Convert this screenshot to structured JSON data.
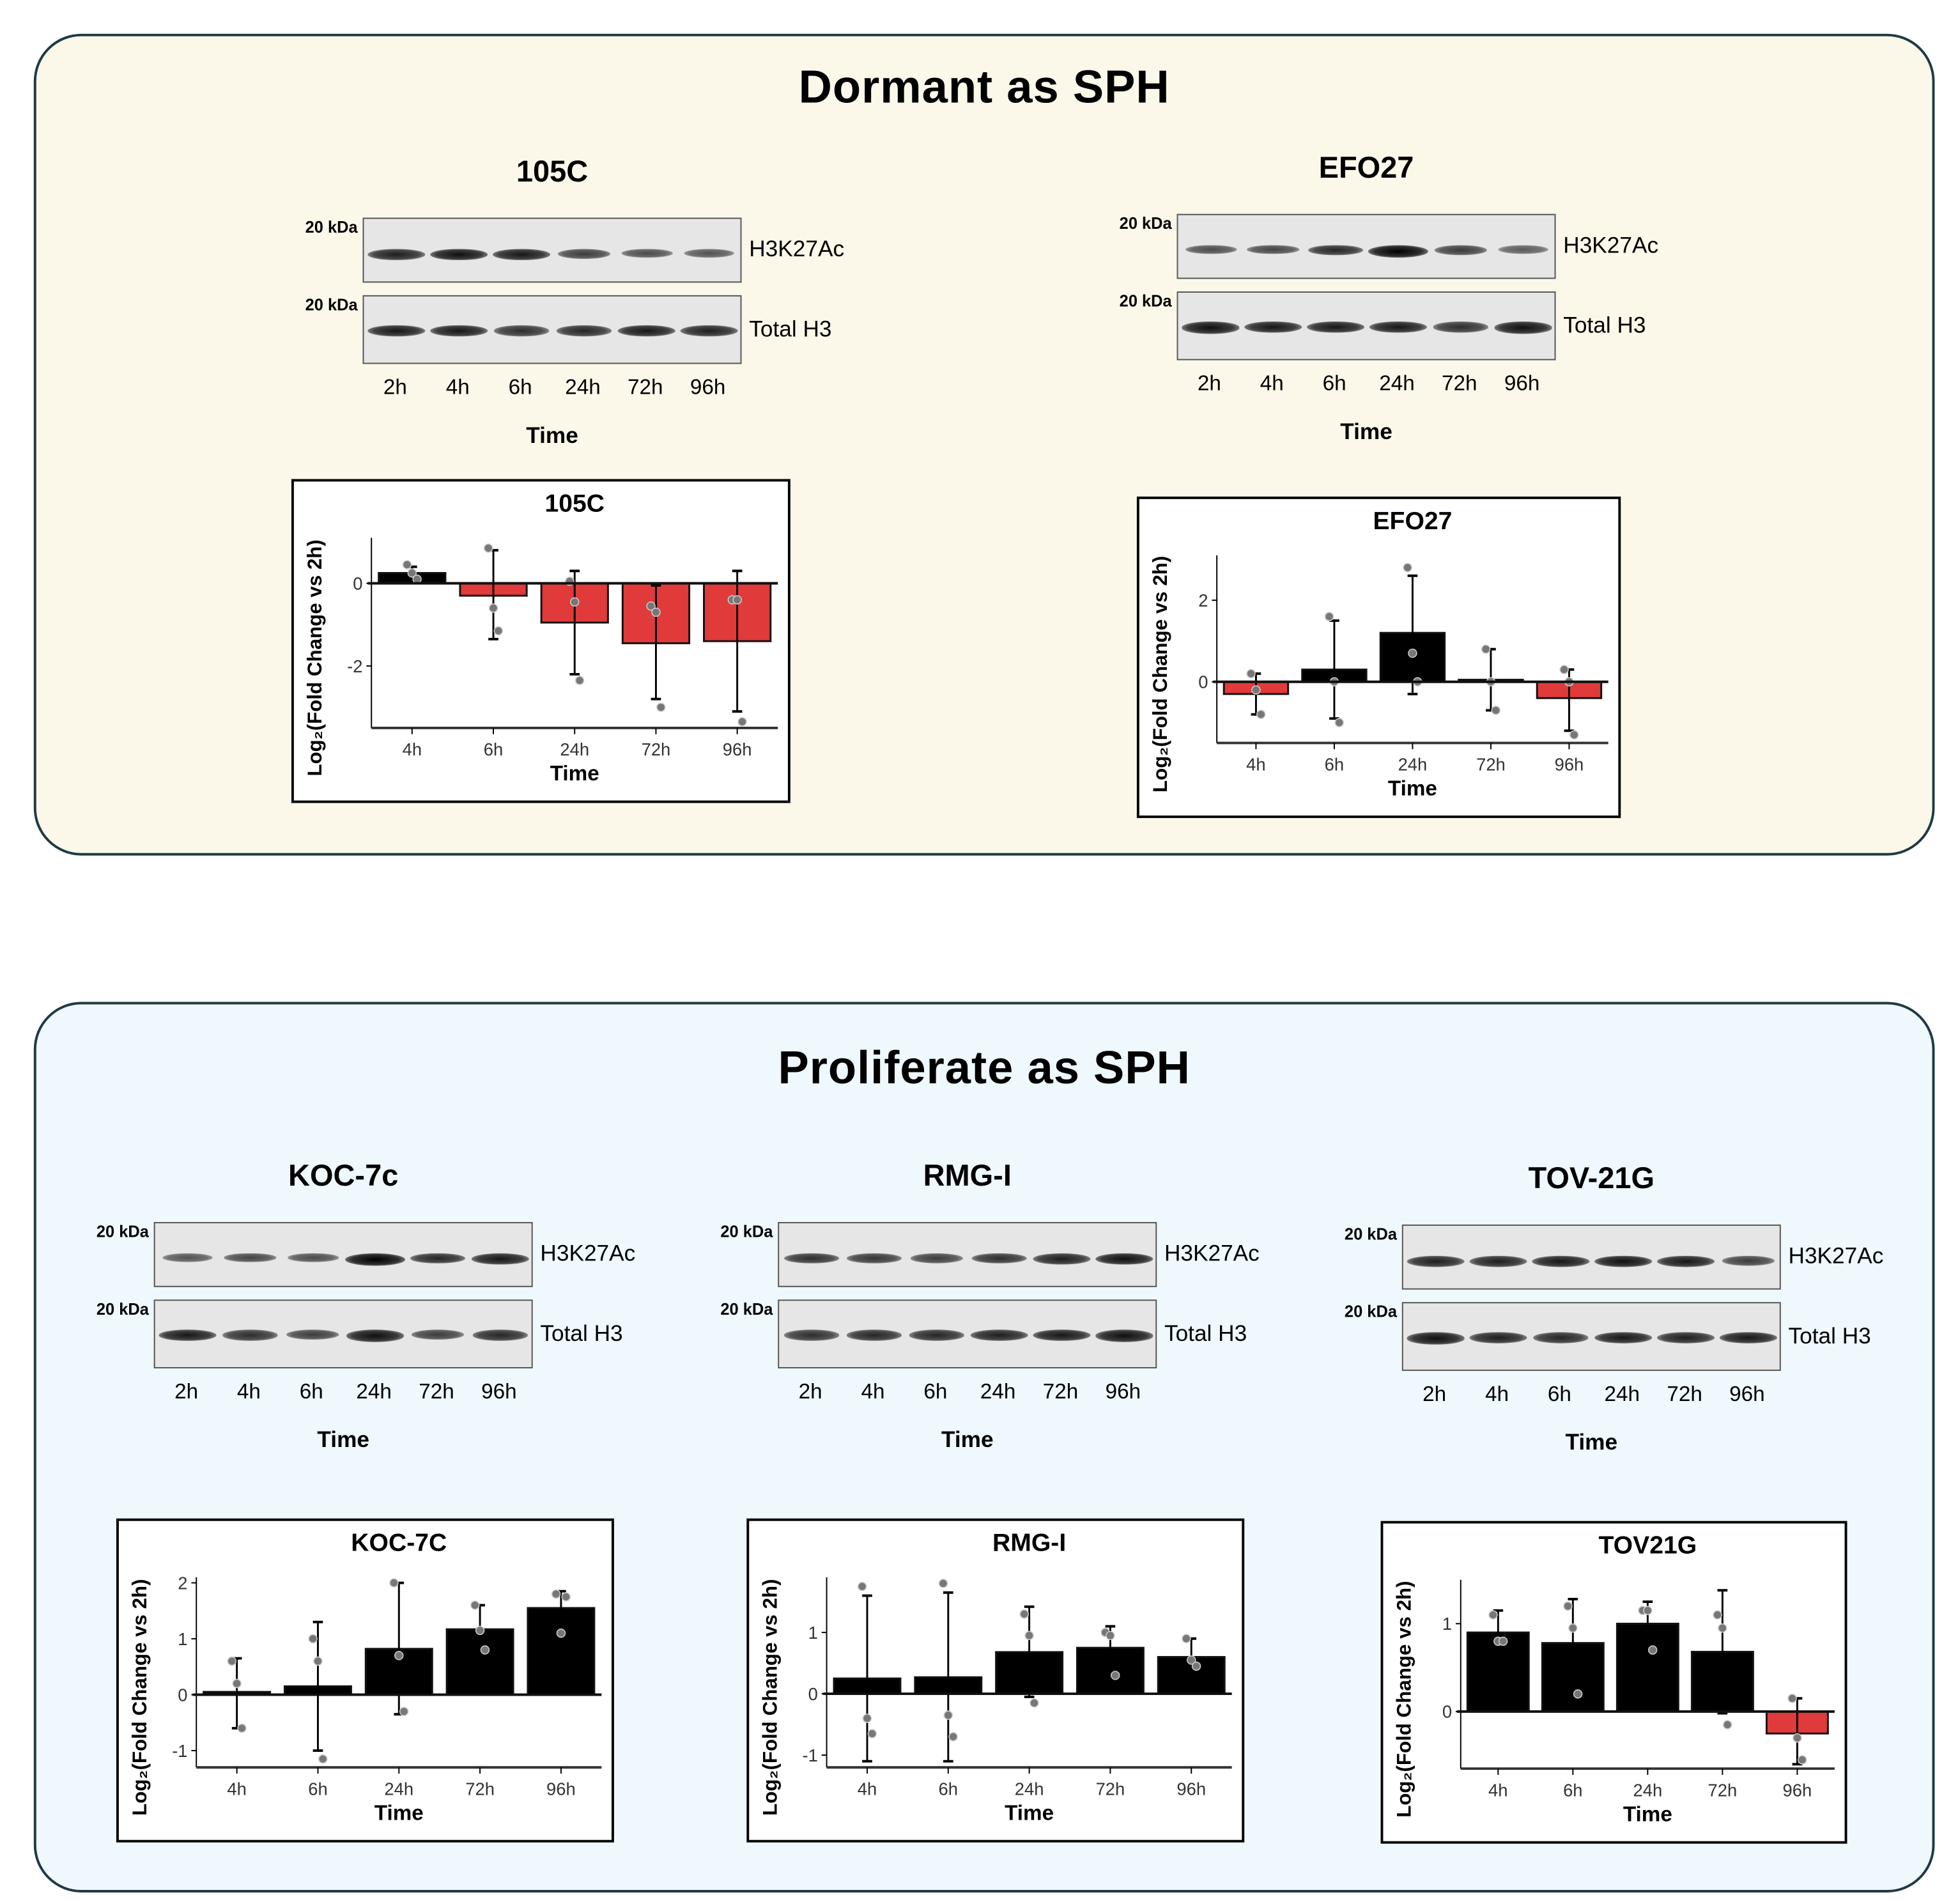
{
  "panels": {
    "top_title": "Dormant as SPH",
    "bottom_title": "Proliferate as SPH",
    "top_bg": "#fbf8ea",
    "bottom_bg": "#eef8fd"
  },
  "blots": [
    {
      "title": "105C",
      "kda": "20 kDa",
      "xlabel": "Time",
      "lanes": [
        "2h",
        "4h",
        "6h",
        "24h",
        "72h",
        "96h"
      ],
      "rows": [
        {
          "label": "H3K27Ac",
          "bands": [
            0.8,
            0.9,
            0.85,
            0.6,
            0.5,
            0.45
          ]
        },
        {
          "label": "Total  H3",
          "bands": [
            0.85,
            0.85,
            0.7,
            0.75,
            0.85,
            0.8
          ]
        }
      ]
    },
    {
      "title": "EFO27",
      "kda": "20 kDa",
      "xlabel": "Time",
      "lanes": [
        "2h",
        "4h",
        "6h",
        "24h",
        "72h",
        "96h"
      ],
      "rows": [
        {
          "label": "H3K27Ac",
          "bands": [
            0.5,
            0.55,
            0.75,
            1.0,
            0.6,
            0.4
          ]
        },
        {
          "label": "Total  H3",
          "bands": [
            0.9,
            0.85,
            0.85,
            0.85,
            0.7,
            0.9
          ]
        }
      ]
    },
    {
      "title": "KOC-7c",
      "kda": "20 kDa",
      "xlabel": "Time",
      "lanes": [
        "2h",
        "4h",
        "6h",
        "24h",
        "72h",
        "96h"
      ],
      "rows": [
        {
          "label": "H3K27Ac",
          "bands": [
            0.45,
            0.55,
            0.5,
            1.0,
            0.75,
            0.85
          ]
        },
        {
          "label": "Total  H3",
          "bands": [
            0.85,
            0.7,
            0.6,
            0.9,
            0.6,
            0.75
          ]
        }
      ]
    },
    {
      "title": "RMG-I",
      "kda": "20 kDa",
      "xlabel": "Time",
      "lanes": [
        "2h",
        "4h",
        "6h",
        "24h",
        "72h",
        "96h"
      ],
      "rows": [
        {
          "label": "H3K27Ac",
          "bands": [
            0.7,
            0.65,
            0.6,
            0.7,
            0.8,
            0.9
          ]
        },
        {
          "label": "Total  H3",
          "bands": [
            0.7,
            0.75,
            0.75,
            0.8,
            0.85,
            0.9
          ]
        }
      ]
    },
    {
      "title": "TOV-21G",
      "kda": "20 kDa",
      "xlabel": "Time",
      "lanes": [
        "2h",
        "4h",
        "6h",
        "24h",
        "72h",
        "96h"
      ],
      "rows": [
        {
          "label": "H3K27Ac",
          "bands": [
            0.8,
            0.8,
            0.85,
            0.9,
            0.85,
            0.6
          ]
        },
        {
          "label": "Total  H3",
          "bands": [
            0.9,
            0.8,
            0.75,
            0.85,
            0.8,
            0.85
          ]
        }
      ]
    }
  ],
  "chart_data": [
    {
      "type": "bar",
      "title": "105C",
      "xlabel": "Time",
      "ylabel": "Log₂(Fold Change vs 2h)",
      "categories": [
        "4h",
        "6h",
        "24h",
        "72h",
        "96h"
      ],
      "values": [
        0.25,
        -0.3,
        -0.95,
        -1.45,
        -1.4
      ],
      "err_low": [
        0.1,
        -1.35,
        -2.2,
        -2.8,
        -3.1
      ],
      "err_high": [
        0.4,
        0.8,
        0.3,
        -0.05,
        0.3
      ],
      "points": [
        [
          0.45,
          0.25,
          0.1
        ],
        [
          0.85,
          -0.6,
          -1.15
        ],
        [
          0.05,
          -0.45,
          -2.35
        ],
        [
          -0.55,
          -0.7,
          -3.0
        ],
        [
          -0.4,
          -0.4,
          -3.35
        ]
      ],
      "ylim": [
        -3.5,
        1.1
      ],
      "yticks": [
        0,
        -2
      ],
      "colors": {
        "positive": "#000000",
        "negative": "#e03a3a"
      }
    },
    {
      "type": "bar",
      "title": "EFO27",
      "xlabel": "Time",
      "ylabel": "Log₂(Fold Change vs 2h)",
      "categories": [
        "4h",
        "6h",
        "24h",
        "72h",
        "96h"
      ],
      "values": [
        -0.3,
        0.3,
        1.2,
        0.05,
        -0.4
      ],
      "err_low": [
        -0.8,
        -0.9,
        -0.3,
        -0.7,
        -1.2
      ],
      "err_high": [
        0.2,
        1.5,
        2.6,
        0.8,
        0.3
      ],
      "points": [
        [
          0.2,
          -0.2,
          -0.8
        ],
        [
          1.6,
          0.0,
          -1.0
        ],
        [
          2.8,
          0.7,
          0.0
        ],
        [
          0.8,
          0.0,
          -0.7
        ],
        [
          0.3,
          0.0,
          -1.3
        ]
      ],
      "ylim": [
        -1.5,
        3.1
      ],
      "yticks": [
        0,
        2
      ],
      "colors": {
        "positive": "#000000",
        "negative": "#e03a3a"
      }
    },
    {
      "type": "bar",
      "title": "KOC-7C",
      "xlabel": "Time",
      "ylabel": "Log₂(Fold Change vs 2h)",
      "categories": [
        "4h",
        "6h",
        "24h",
        "72h",
        "96h"
      ],
      "values": [
        0.05,
        0.15,
        0.82,
        1.17,
        1.55
      ],
      "err_low": [
        -0.6,
        -1.0,
        -0.35,
        0.75,
        1.25
      ],
      "err_high": [
        0.65,
        1.3,
        2.0,
        1.6,
        1.85
      ],
      "points": [
        [
          0.6,
          0.2,
          -0.6
        ],
        [
          1.0,
          0.6,
          -1.15
        ],
        [
          2.0,
          0.7,
          -0.3
        ],
        [
          1.6,
          1.15,
          0.8
        ],
        [
          1.8,
          1.1,
          1.75
        ]
      ],
      "ylim": [
        -1.3,
        2.1
      ],
      "yticks": [
        -1,
        0,
        1,
        2
      ],
      "colors": {
        "positive": "#000000",
        "negative": "#e03a3a"
      }
    },
    {
      "type": "bar",
      "title": "RMG-I",
      "xlabel": "Time",
      "ylabel": "Log₂(Fold Change vs 2h)",
      "categories": [
        "4h",
        "6h",
        "24h",
        "72h",
        "96h"
      ],
      "values": [
        0.25,
        0.27,
        0.68,
        0.75,
        0.6
      ],
      "err_low": [
        -1.1,
        -1.1,
        -0.05,
        0.4,
        0.3
      ],
      "err_high": [
        1.6,
        1.65,
        1.42,
        1.1,
        0.9
      ],
      "points": [
        [
          1.75,
          -0.4,
          -0.65
        ],
        [
          1.8,
          -0.35,
          -0.7
        ],
        [
          1.3,
          0.95,
          -0.15
        ],
        [
          1.0,
          0.95,
          0.3
        ],
        [
          0.9,
          0.55,
          0.45
        ]
      ],
      "ylim": [
        -1.2,
        1.9
      ],
      "yticks": [
        -1,
        0,
        1
      ],
      "colors": {
        "positive": "#000000",
        "negative": "#e03a3a"
      }
    },
    {
      "type": "bar",
      "title": "TOV21G",
      "xlabel": "Time",
      "ylabel": "Log₂(Fold Change vs 2h)",
      "categories": [
        "4h",
        "6h",
        "24h",
        "72h",
        "96h"
      ],
      "values": [
        0.9,
        0.78,
        1.0,
        0.68,
        -0.25
      ],
      "err_low": [
        0.65,
        0.3,
        0.75,
        -0.02,
        -0.6
      ],
      "err_high": [
        1.15,
        1.28,
        1.25,
        1.38,
        0.15
      ],
      "points": [
        [
          1.1,
          0.8,
          0.8
        ],
        [
          1.2,
          0.95,
          0.2
        ],
        [
          1.15,
          1.15,
          0.7
        ],
        [
          1.1,
          0.95,
          -0.15
        ],
        [
          0.15,
          -0.3,
          -0.55
        ]
      ],
      "ylim": [
        -0.65,
        1.5
      ],
      "yticks": [
        0,
        1
      ],
      "colors": {
        "positive": "#000000",
        "negative": "#e03a3a"
      }
    }
  ]
}
